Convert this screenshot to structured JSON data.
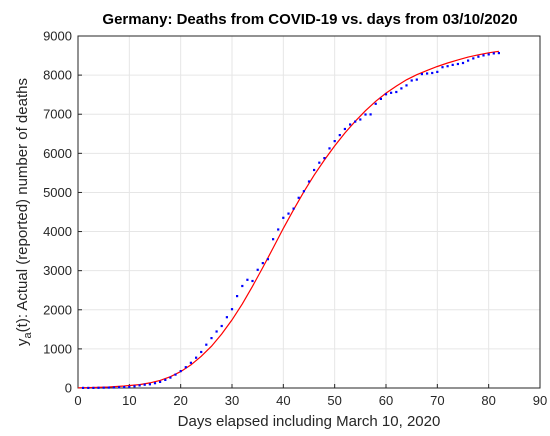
{
  "chart_data": {
    "type": "scatter",
    "title": "Germany: Deaths from COVID-19 vs. days from 03/10/2020",
    "xlabel": "Days elapsed including March 10, 2020",
    "ylabel_main": "y",
    "ylabel_sub": "a",
    "ylabel_rest": "(t): Actual (reported) number of deaths",
    "xlim": [
      0,
      90
    ],
    "ylim": [
      0,
      9000
    ],
    "xticks": [
      0,
      10,
      20,
      30,
      40,
      50,
      60,
      70,
      80,
      90
    ],
    "yticks": [
      0,
      1000,
      2000,
      3000,
      4000,
      5000,
      6000,
      7000,
      8000,
      9000
    ],
    "grid": true,
    "colors": {
      "points": "#0000ff",
      "fit": "#ff0000",
      "axis": "#262626",
      "grid": "#e6e6e6"
    },
    "series": [
      {
        "style": "points",
        "x": [
          1,
          2,
          3,
          4,
          5,
          6,
          7,
          8,
          9,
          10,
          11,
          12,
          13,
          14,
          15,
          16,
          17,
          18,
          19,
          20,
          21,
          22,
          23,
          24,
          25,
          26,
          27,
          28,
          29,
          30,
          31,
          32,
          33,
          34,
          35,
          36,
          37,
          38,
          39,
          40,
          41,
          42,
          43,
          44,
          45,
          46,
          47,
          48,
          49,
          50,
          51,
          52,
          53,
          54,
          55,
          56,
          57,
          58,
          59,
          60,
          61,
          62,
          63,
          64,
          65,
          66,
          67,
          68,
          69,
          70,
          71,
          72,
          73,
          74,
          75,
          76,
          77,
          78,
          79,
          80,
          81,
          82
        ],
        "y": [
          2,
          2,
          3,
          6,
          8,
          9,
          13,
          17,
          24,
          28,
          44,
          67,
          84,
          94,
          123,
          157,
          206,
          267,
          342,
          433,
          533,
          645,
          775,
          920,
          1107,
          1275,
          1444,
          1584,
          1810,
          2016,
          2349,
          2607,
          2767,
          2736,
          3022,
          3194,
          3294,
          3804,
          4052,
          4352,
          4459,
          4586,
          4862,
          5033,
          5279,
          5575,
          5760,
          5877,
          6126,
          6314,
          6467,
          6623,
          6736,
          6812,
          6866,
          6993,
          6995,
          7266,
          7392,
          7510,
          7549,
          7569,
          7661,
          7738,
          7861,
          7884,
          8027,
          8041,
          8053,
          8081,
          8203,
          8228,
          8261,
          8283,
          8309,
          8372,
          8428,
          8470,
          8504,
          8530,
          8555,
          8563
        ]
      },
      {
        "style": "line",
        "x": [
          0,
          3,
          6,
          9,
          12,
          14,
          16,
          18,
          20,
          22,
          24,
          26,
          28,
          30,
          32,
          34,
          36,
          38,
          40,
          42,
          44,
          46,
          48,
          50,
          52,
          54,
          56,
          58,
          60,
          62,
          64,
          66,
          68,
          70,
          72,
          74,
          76,
          78,
          80,
          82
        ],
        "y": [
          5,
          12,
          26,
          50,
          88,
          130,
          195,
          290,
          420,
          590,
          810,
          1070,
          1380,
          1740,
          2150,
          2600,
          3080,
          3580,
          4080,
          4560,
          5020,
          5440,
          5830,
          6190,
          6520,
          6820,
          7090,
          7330,
          7540,
          7720,
          7880,
          8010,
          8120,
          8220,
          8310,
          8390,
          8460,
          8520,
          8570,
          8610
        ]
      }
    ]
  }
}
